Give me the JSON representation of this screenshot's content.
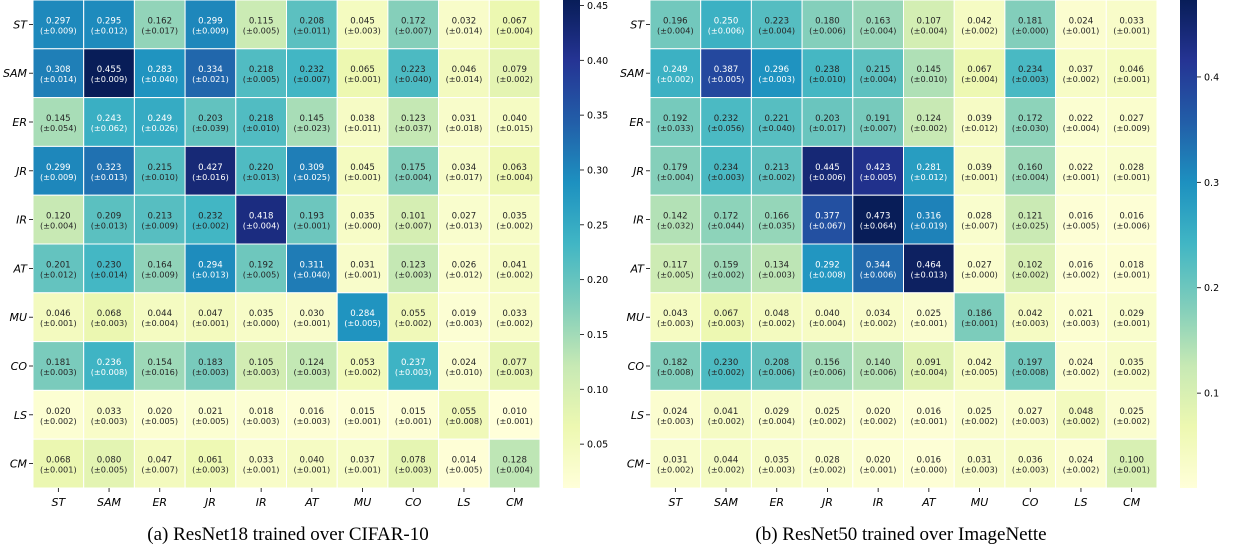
{
  "chart_data": [
    {
      "type": "heatmap",
      "caption": "(a) ResNet18 trained over CIFAR-10",
      "row_labels": [
        "ST",
        "SAM",
        "ER",
        "JR",
        "IR",
        "AT",
        "MU",
        "CO",
        "LS",
        "CM"
      ],
      "col_labels": [
        "ST",
        "SAM",
        "ER",
        "JR",
        "IR",
        "AT",
        "MU",
        "CO",
        "LS",
        "CM"
      ],
      "values": [
        [
          0.297,
          0.295,
          0.162,
          0.299,
          0.115,
          0.208,
          0.045,
          0.172,
          0.032,
          0.067
        ],
        [
          0.308,
          0.455,
          0.283,
          0.334,
          0.218,
          0.232,
          0.065,
          0.223,
          0.046,
          0.079
        ],
        [
          0.145,
          0.243,
          0.249,
          0.203,
          0.218,
          0.145,
          0.038,
          0.123,
          0.031,
          0.04
        ],
        [
          0.299,
          0.323,
          0.215,
          0.427,
          0.22,
          0.309,
          0.045,
          0.175,
          0.034,
          0.063
        ],
        [
          0.12,
          0.209,
          0.213,
          0.232,
          0.418,
          0.193,
          0.035,
          0.101,
          0.027,
          0.035
        ],
        [
          0.201,
          0.23,
          0.164,
          0.294,
          0.192,
          0.311,
          0.031,
          0.123,
          0.026,
          0.041
        ],
        [
          0.046,
          0.068,
          0.044,
          0.047,
          0.035,
          0.03,
          0.284,
          0.055,
          0.019,
          0.033
        ],
        [
          0.181,
          0.236,
          0.154,
          0.183,
          0.105,
          0.124,
          0.053,
          0.237,
          0.024,
          0.077
        ],
        [
          0.02,
          0.033,
          0.02,
          0.021,
          0.018,
          0.016,
          0.015,
          0.015,
          0.055,
          0.01
        ],
        [
          0.068,
          0.08,
          0.047,
          0.061,
          0.033,
          0.04,
          0.037,
          0.078,
          0.014,
          0.128
        ]
      ],
      "std": [
        [
          0.009,
          0.012,
          0.017,
          0.009,
          0.005,
          0.011,
          0.003,
          0.007,
          0.014,
          0.004
        ],
        [
          0.014,
          0.009,
          0.04,
          0.021,
          0.005,
          0.007,
          0.001,
          0.04,
          0.014,
          0.002
        ],
        [
          0.054,
          0.062,
          0.026,
          0.039,
          0.01,
          0.023,
          0.011,
          0.037,
          0.018,
          0.015
        ],
        [
          0.009,
          0.013,
          0.01,
          0.016,
          0.013,
          0.025,
          0.001,
          0.004,
          0.017,
          0.004
        ],
        [
          0.004,
          0.013,
          0.009,
          0.002,
          0.004,
          0.001,
          0.0,
          0.007,
          0.013,
          0.002
        ],
        [
          0.012,
          0.014,
          0.009,
          0.013,
          0.005,
          0.04,
          0.001,
          0.003,
          0.012,
          0.002
        ],
        [
          0.001,
          0.003,
          0.004,
          0.001,
          0.0,
          0.001,
          0.005,
          0.002,
          0.003,
          0.002
        ],
        [
          0.003,
          0.008,
          0.016,
          0.003,
          0.003,
          0.003,
          0.002,
          0.003,
          0.01,
          0.003
        ],
        [
          0.002,
          0.003,
          0.005,
          0.005,
          0.003,
          0.003,
          0.001,
          0.001,
          0.008,
          0.001
        ],
        [
          0.001,
          0.005,
          0.007,
          0.003,
          0.001,
          0.001,
          0.001,
          0.003,
          0.005,
          0.004
        ]
      ],
      "colorbar": {
        "min": 0.01,
        "max": 0.455,
        "ticks": [
          "0.05",
          "0.10",
          "0.15",
          "0.20",
          "0.25",
          "0.30",
          "0.35",
          "0.40",
          "0.45"
        ]
      }
    },
    {
      "type": "heatmap",
      "caption": "(b) ResNet50 trained over ImageNette",
      "row_labels": [
        "ST",
        "SAM",
        "ER",
        "JR",
        "IR",
        "AT",
        "MU",
        "CO",
        "LS",
        "CM"
      ],
      "col_labels": [
        "ST",
        "SAM",
        "ER",
        "JR",
        "IR",
        "AT",
        "MU",
        "CO",
        "LS",
        "CM"
      ],
      "values": [
        [
          0.196,
          0.25,
          0.223,
          0.18,
          0.163,
          0.107,
          0.042,
          0.181,
          0.024,
          0.033
        ],
        [
          0.249,
          0.387,
          0.296,
          0.238,
          0.215,
          0.145,
          0.067,
          0.234,
          0.037,
          0.046
        ],
        [
          0.192,
          0.232,
          0.221,
          0.203,
          0.191,
          0.124,
          0.039,
          0.172,
          0.022,
          0.027
        ],
        [
          0.179,
          0.234,
          0.213,
          0.445,
          0.423,
          0.281,
          0.039,
          0.16,
          0.022,
          0.028
        ],
        [
          0.142,
          0.172,
          0.166,
          0.377,
          0.473,
          0.316,
          0.028,
          0.121,
          0.016,
          0.016
        ],
        [
          0.117,
          0.159,
          0.134,
          0.292,
          0.344,
          0.464,
          0.027,
          0.102,
          0.016,
          0.018
        ],
        [
          0.043,
          0.067,
          0.048,
          0.04,
          0.034,
          0.025,
          0.186,
          0.042,
          0.021,
          0.029
        ],
        [
          0.182,
          0.23,
          0.208,
          0.156,
          0.14,
          0.091,
          0.042,
          0.197,
          0.024,
          0.035
        ],
        [
          0.024,
          0.041,
          0.029,
          0.025,
          0.02,
          0.016,
          0.025,
          0.027,
          0.048,
          0.025
        ],
        [
          0.031,
          0.044,
          0.035,
          0.028,
          0.02,
          0.016,
          0.031,
          0.036,
          0.024,
          0.1
        ]
      ],
      "std": [
        [
          0.004,
          0.006,
          0.004,
          0.006,
          0.004,
          0.004,
          0.002,
          0.0,
          0.001,
          0.001
        ],
        [
          0.002,
          0.005,
          0.003,
          0.01,
          0.004,
          0.01,
          0.004,
          0.003,
          0.002,
          0.001
        ],
        [
          0.033,
          0.056,
          0.04,
          0.017,
          0.007,
          0.002,
          0.012,
          0.03,
          0.004,
          0.009
        ],
        [
          0.004,
          0.003,
          0.002,
          0.006,
          0.005,
          0.012,
          0.001,
          0.004,
          0.001,
          0.001
        ],
        [
          0.032,
          0.044,
          0.035,
          0.067,
          0.064,
          0.019,
          0.007,
          0.025,
          0.005,
          0.006
        ],
        [
          0.005,
          0.002,
          0.003,
          0.008,
          0.006,
          0.013,
          0.0,
          0.002,
          0.002,
          0.001
        ],
        [
          0.003,
          0.003,
          0.002,
          0.004,
          0.002,
          0.001,
          0.001,
          0.003,
          0.003,
          0.001
        ],
        [
          0.008,
          0.002,
          0.006,
          0.006,
          0.006,
          0.004,
          0.005,
          0.008,
          0.002,
          0.002
        ],
        [
          0.003,
          0.002,
          0.004,
          0.002,
          0.002,
          0.001,
          0.002,
          0.003,
          0.002,
          0.002
        ],
        [
          0.002,
          0.002,
          0.003,
          0.002,
          0.001,
          0.0,
          0.003,
          0.003,
          0.002,
          0.001
        ]
      ],
      "colorbar": {
        "min": 0.01,
        "max": 0.473,
        "ticks": [
          "0.1",
          "0.2",
          "0.3",
          "0.4"
        ]
      }
    }
  ],
  "colormap": [
    "#ffffd9",
    "#edf8b1",
    "#c7e9b4",
    "#7fcdbb",
    "#41b6c4",
    "#1d91c0",
    "#225ea8",
    "#253494",
    "#081d58"
  ]
}
